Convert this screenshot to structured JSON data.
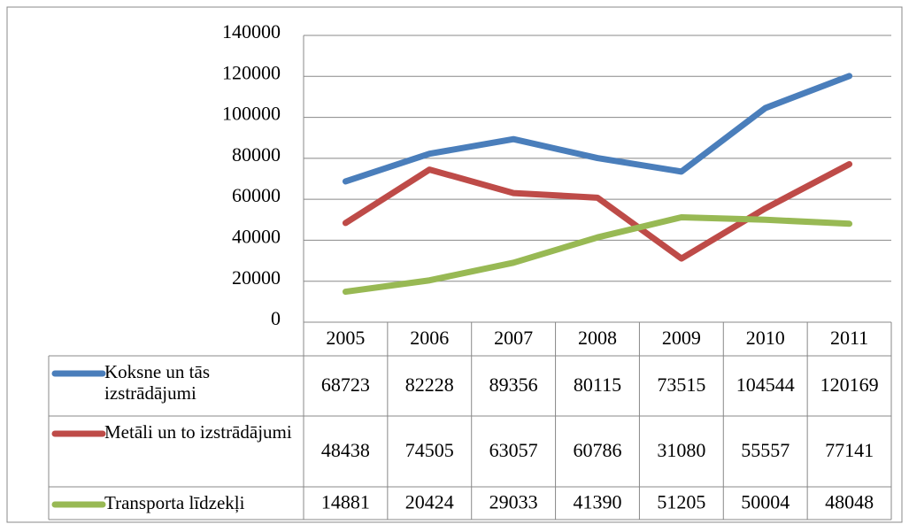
{
  "chart_data": {
    "type": "line",
    "categories": [
      "2005",
      "2006",
      "2007",
      "2008",
      "2009",
      "2010",
      "2011"
    ],
    "series": [
      {
        "name": "Koksne un tās izstrādājumi",
        "color": "#4a7ebb",
        "values": [
          68723,
          82228,
          89356,
          80115,
          73515,
          104544,
          120169
        ]
      },
      {
        "name": "Metāli un to izstrādājumi",
        "color": "#be4b48",
        "values": [
          48438,
          74505,
          63057,
          60786,
          31080,
          55557,
          77141
        ]
      },
      {
        "name": "Transporta līdzekļi",
        "color": "#98b954",
        "values": [
          14881,
          20424,
          29033,
          41390,
          51205,
          50004,
          48048
        ]
      }
    ],
    "ylim": [
      0,
      140000
    ],
    "yticks": [
      0,
      20000,
      40000,
      60000,
      80000,
      100000,
      120000,
      140000
    ],
    "grid": true,
    "data_table": true
  }
}
